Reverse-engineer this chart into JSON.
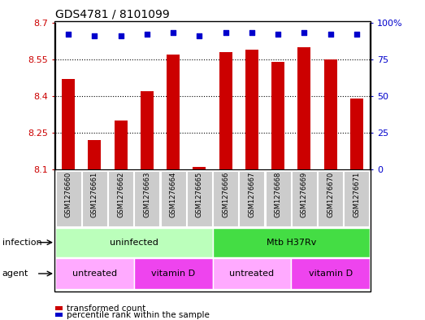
{
  "title": "GDS4781 / 8101099",
  "samples": [
    "GSM1276660",
    "GSM1276661",
    "GSM1276662",
    "GSM1276663",
    "GSM1276664",
    "GSM1276665",
    "GSM1276666",
    "GSM1276667",
    "GSM1276668",
    "GSM1276669",
    "GSM1276670",
    "GSM1276671"
  ],
  "transformed_count": [
    8.47,
    8.22,
    8.3,
    8.42,
    8.57,
    8.11,
    8.58,
    8.59,
    8.54,
    8.6,
    8.55,
    8.39
  ],
  "percentile_rank": [
    92,
    91,
    91,
    92,
    93,
    91,
    93,
    93,
    92,
    93,
    92,
    92
  ],
  "ylim_left": [
    8.1,
    8.7
  ],
  "ylim_right": [
    0,
    100
  ],
  "yticks_left": [
    8.1,
    8.25,
    8.4,
    8.55,
    8.7
  ],
  "yticks_right": [
    0,
    25,
    50,
    75,
    100
  ],
  "bar_color": "#cc0000",
  "dot_color": "#0000cc",
  "infection_data": [
    {
      "text": "uninfected",
      "start": 0,
      "end": 6,
      "facecolor": "#bbffbb"
    },
    {
      "text": "Mtb H37Rv",
      "start": 6,
      "end": 12,
      "facecolor": "#44dd44"
    }
  ],
  "agent_data": [
    {
      "text": "untreated",
      "start": 0,
      "end": 3,
      "facecolor": "#ffaaff"
    },
    {
      "text": "vitamin D",
      "start": 3,
      "end": 6,
      "facecolor": "#ee44ee"
    },
    {
      "text": "untreated",
      "start": 6,
      "end": 9,
      "facecolor": "#ffaaff"
    },
    {
      "text": "vitamin D",
      "start": 9,
      "end": 12,
      "facecolor": "#ee44ee"
    }
  ],
  "legend_bar_label": "transformed count",
  "legend_dot_label": "percentile rank within the sample",
  "infection_row_label": "infection",
  "agent_row_label": "agent",
  "box_bg_color": "#cccccc",
  "sample_label_fontsize": 6,
  "annotation_fontsize": 8,
  "title_fontsize": 10
}
